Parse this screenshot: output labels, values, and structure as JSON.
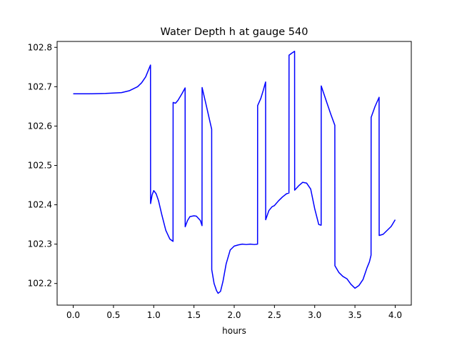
{
  "chart_data": {
    "type": "line",
    "title": "Water Depth h at gauge 540",
    "xlabel": "hours",
    "ylabel": "",
    "xlim": [
      -0.2,
      4.2
    ],
    "ylim": [
      102.145,
      102.815
    ],
    "grid": false,
    "legend": "none",
    "x_ticks": [
      0.0,
      0.5,
      1.0,
      1.5,
      2.0,
      2.5,
      3.0,
      3.5,
      4.0
    ],
    "x_tick_labels": [
      "0.0",
      "0.5",
      "1.0",
      "1.5",
      "2.0",
      "2.5",
      "3.0",
      "3.5",
      "4.0"
    ],
    "y_ticks": [
      102.2,
      102.3,
      102.4,
      102.5,
      102.6,
      102.7,
      102.8
    ],
    "y_tick_labels": [
      "102.2",
      "102.3",
      "102.4",
      "102.5",
      "102.6",
      "102.7",
      "102.8"
    ],
    "series": [
      {
        "color": "#0000ff",
        "x": [
          0.0,
          0.2,
          0.4,
          0.6,
          0.7,
          0.8,
          0.85,
          0.9,
          0.93,
          0.96,
          0.961,
          0.98,
          1.0,
          1.03,
          1.06,
          1.1,
          1.15,
          1.2,
          1.24,
          1.241,
          1.27,
          1.3,
          1.35,
          1.39,
          1.391,
          1.42,
          1.45,
          1.5,
          1.53,
          1.58,
          1.6,
          1.601,
          1.65,
          1.7,
          1.72,
          1.721,
          1.75,
          1.78,
          1.8,
          1.83,
          1.86,
          1.9,
          1.95,
          2.0,
          2.05,
          2.1,
          2.15,
          2.2,
          2.25,
          2.29,
          2.291,
          2.33,
          2.36,
          2.39,
          2.391,
          2.43,
          2.47,
          2.5,
          2.55,
          2.6,
          2.65,
          2.68,
          2.681,
          2.72,
          2.75,
          2.751,
          2.8,
          2.85,
          2.9,
          2.95,
          3.0,
          3.05,
          3.08,
          3.081,
          3.15,
          3.2,
          3.25,
          3.251,
          3.3,
          3.35,
          3.4,
          3.45,
          3.5,
          3.55,
          3.6,
          3.65,
          3.68,
          3.7,
          3.701,
          3.75,
          3.8,
          3.801,
          3.85,
          3.9,
          3.95,
          4.0
        ],
        "values": [
          102.682,
          102.682,
          102.683,
          102.685,
          102.69,
          102.7,
          102.71,
          102.725,
          102.74,
          102.755,
          102.403,
          102.425,
          102.436,
          102.428,
          102.41,
          102.375,
          102.335,
          102.313,
          102.307,
          102.66,
          102.658,
          102.665,
          102.682,
          102.697,
          102.344,
          102.36,
          102.37,
          102.372,
          102.371,
          102.36,
          102.347,
          102.698,
          102.655,
          102.61,
          102.592,
          102.235,
          102.2,
          102.182,
          102.175,
          102.18,
          102.205,
          102.25,
          102.285,
          102.295,
          102.298,
          102.3,
          102.299,
          102.3,
          102.299,
          102.3,
          102.652,
          102.67,
          102.69,
          102.712,
          102.362,
          102.385,
          102.395,
          102.398,
          102.41,
          102.42,
          102.428,
          102.43,
          102.78,
          102.786,
          102.79,
          102.437,
          102.448,
          102.457,
          102.455,
          102.44,
          102.39,
          102.35,
          102.348,
          102.702,
          102.66,
          102.63,
          102.602,
          102.245,
          102.228,
          102.218,
          102.212,
          102.198,
          102.188,
          102.195,
          102.21,
          102.24,
          102.255,
          102.272,
          102.622,
          102.65,
          102.673,
          102.322,
          102.325,
          102.335,
          102.345,
          102.362
        ]
      }
    ]
  }
}
